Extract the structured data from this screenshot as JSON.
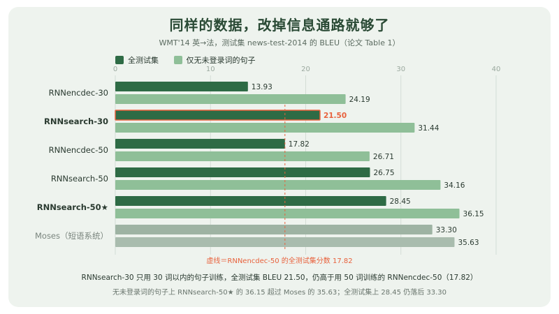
{
  "title": "同样的数据，改掉信息通路就够了",
  "subtitle": "WMT'14 英→法，测试集 news-test-2014 的 BLEU（论文 Table 1）",
  "colors": {
    "all": "#2e6b45",
    "unk": "#8fbf98",
    "moses": "#9eb3a3",
    "highlight": "#e8613c",
    "grid": "#d3ddd5",
    "axis_text": "#9aa89e"
  },
  "chart_data": {
    "type": "bar",
    "orientation": "horizontal",
    "categories": [
      "RNNencdec-30",
      "RNNsearch-30",
      "RNNencdec-50",
      "RNNsearch-50",
      "RNNsearch-50★",
      "Moses（短语系统）"
    ],
    "bold_categories": [
      "RNNsearch-30",
      "RNNsearch-50★"
    ],
    "series": [
      {
        "name": "全测试集",
        "values": [
          13.93,
          21.5,
          17.82,
          26.75,
          28.45,
          33.3
        ]
      },
      {
        "name": "仅无未登录词的句子",
        "values": [
          24.19,
          31.44,
          26.71,
          34.16,
          36.15,
          35.63
        ]
      }
    ],
    "value_labels": {
      "全测试集": [
        "13.93",
        "21.50",
        "17.82",
        "26.75",
        "28.45",
        "33.30"
      ],
      "仅无未登录词的句子": [
        "24.19",
        "31.44",
        "26.71",
        "34.16",
        "36.15",
        "35.63"
      ]
    },
    "xlim": [
      0,
      40
    ],
    "xticks": [
      0,
      10,
      20,
      30,
      40
    ],
    "grid": true,
    "legend_position": "top-left",
    "highlight": {
      "category": "RNNsearch-30",
      "series": "全测试集"
    },
    "reference_line": {
      "value": 17.82,
      "label": "虚线＝RNNencdec-50 的全测试集分数 17.82"
    }
  },
  "notes": {
    "line1": "RNNsearch-30 只用 30 词以内的句子训练，全测试集 BLEU 21.50，仍高于用 50 词训练的 RNNencdec-50（17.82）",
    "line2": "无未登录词的句子上 RNNsearch-50★ 的 36.15 超过 Moses 的 35.63；全测试集上 28.45 仍落后 33.30"
  }
}
